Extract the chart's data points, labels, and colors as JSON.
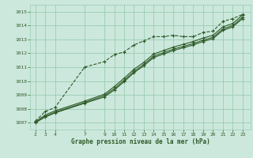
{
  "xlabel": "Graphe pression niveau de la mer (hPa)",
  "bg_color": "#cce8dc",
  "grid_color": "#99ccb3",
  "line_color": "#2d5a27",
  "x_ticks": [
    2,
    3,
    4,
    7,
    9,
    10,
    11,
    12,
    13,
    14,
    15,
    16,
    17,
    18,
    19,
    20,
    21,
    22,
    23
  ],
  "ylim": [
    1006.5,
    1015.5
  ],
  "yticks": [
    1007,
    1008,
    1009,
    1010,
    1011,
    1012,
    1013,
    1014,
    1015
  ],
  "xlim": [
    1.5,
    23.8
  ],
  "series1_x": [
    2,
    3,
    4,
    7,
    9,
    10,
    11,
    12,
    13,
    14,
    15,
    16,
    17,
    18,
    19,
    20,
    21,
    22,
    23
  ],
  "series1_y": [
    1007.1,
    1007.8,
    1008.1,
    1011.0,
    1011.4,
    1011.9,
    1012.1,
    1012.6,
    1012.9,
    1013.2,
    1013.2,
    1013.3,
    1013.2,
    1013.2,
    1013.5,
    1013.6,
    1014.3,
    1014.5,
    1014.8
  ],
  "series2_x": [
    2,
    3,
    4,
    7,
    9,
    10,
    11,
    12,
    13,
    14,
    15,
    16,
    17,
    18,
    19,
    20,
    21,
    22,
    23
  ],
  "series2_y": [
    1007.05,
    1007.55,
    1007.85,
    1008.55,
    1009.05,
    1009.6,
    1010.2,
    1010.85,
    1011.35,
    1011.95,
    1012.2,
    1012.45,
    1012.65,
    1012.85,
    1013.1,
    1013.3,
    1013.9,
    1014.15,
    1014.75
  ],
  "series3_x": [
    2,
    3,
    4,
    7,
    9,
    10,
    11,
    12,
    13,
    14,
    15,
    16,
    17,
    18,
    19,
    20,
    21,
    22,
    23
  ],
  "series3_y": [
    1007.0,
    1007.45,
    1007.75,
    1008.45,
    1008.95,
    1009.45,
    1010.05,
    1010.7,
    1011.2,
    1011.8,
    1012.05,
    1012.3,
    1012.5,
    1012.7,
    1012.95,
    1013.15,
    1013.75,
    1014.0,
    1014.6
  ],
  "series4_x": [
    2,
    3,
    4,
    7,
    9,
    10,
    11,
    12,
    13,
    14,
    15,
    16,
    17,
    18,
    19,
    20,
    21,
    22,
    23
  ],
  "series4_y": [
    1007.0,
    1007.4,
    1007.7,
    1008.4,
    1008.85,
    1009.35,
    1009.95,
    1010.6,
    1011.1,
    1011.7,
    1011.95,
    1012.2,
    1012.4,
    1012.6,
    1012.85,
    1013.05,
    1013.65,
    1013.9,
    1014.5
  ]
}
